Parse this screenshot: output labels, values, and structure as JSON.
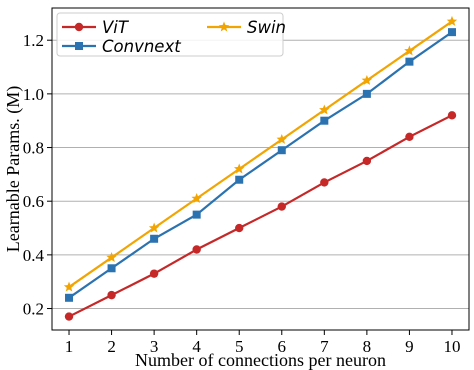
{
  "chart_data": {
    "type": "line",
    "title": "",
    "xlabel": "Number of connections per neuron",
    "ylabel": "Learnable Params. (M)",
    "x": [
      1,
      2,
      3,
      4,
      5,
      6,
      7,
      8,
      9,
      10
    ],
    "xlim": [
      0.6,
      10.4
    ],
    "ylim": [
      0.12,
      1.32
    ],
    "xticks": [
      "1",
      "2",
      "3",
      "4",
      "5",
      "6",
      "7",
      "8",
      "9",
      "10"
    ],
    "yticks": [
      "0.2",
      "0.4",
      "0.6",
      "0.8",
      "1.0",
      "1.2"
    ],
    "grid": "horizontal",
    "legend_position": "top-left",
    "series": [
      {
        "name": "ViT",
        "color": "#c62828",
        "marker": "circle",
        "values": [
          0.17,
          0.25,
          0.33,
          0.42,
          0.5,
          0.58,
          0.67,
          0.75,
          0.84,
          0.92
        ]
      },
      {
        "name": "Convnext",
        "color": "#2b72b0",
        "marker": "square",
        "values": [
          0.24,
          0.35,
          0.46,
          0.55,
          0.68,
          0.79,
          0.9,
          1.0,
          1.12,
          1.23
        ]
      },
      {
        "name": "Swin",
        "color": "#f2a400",
        "marker": "star",
        "values": [
          0.28,
          0.39,
          0.5,
          0.61,
          0.72,
          0.83,
          0.94,
          1.05,
          1.16,
          1.27
        ]
      }
    ]
  }
}
